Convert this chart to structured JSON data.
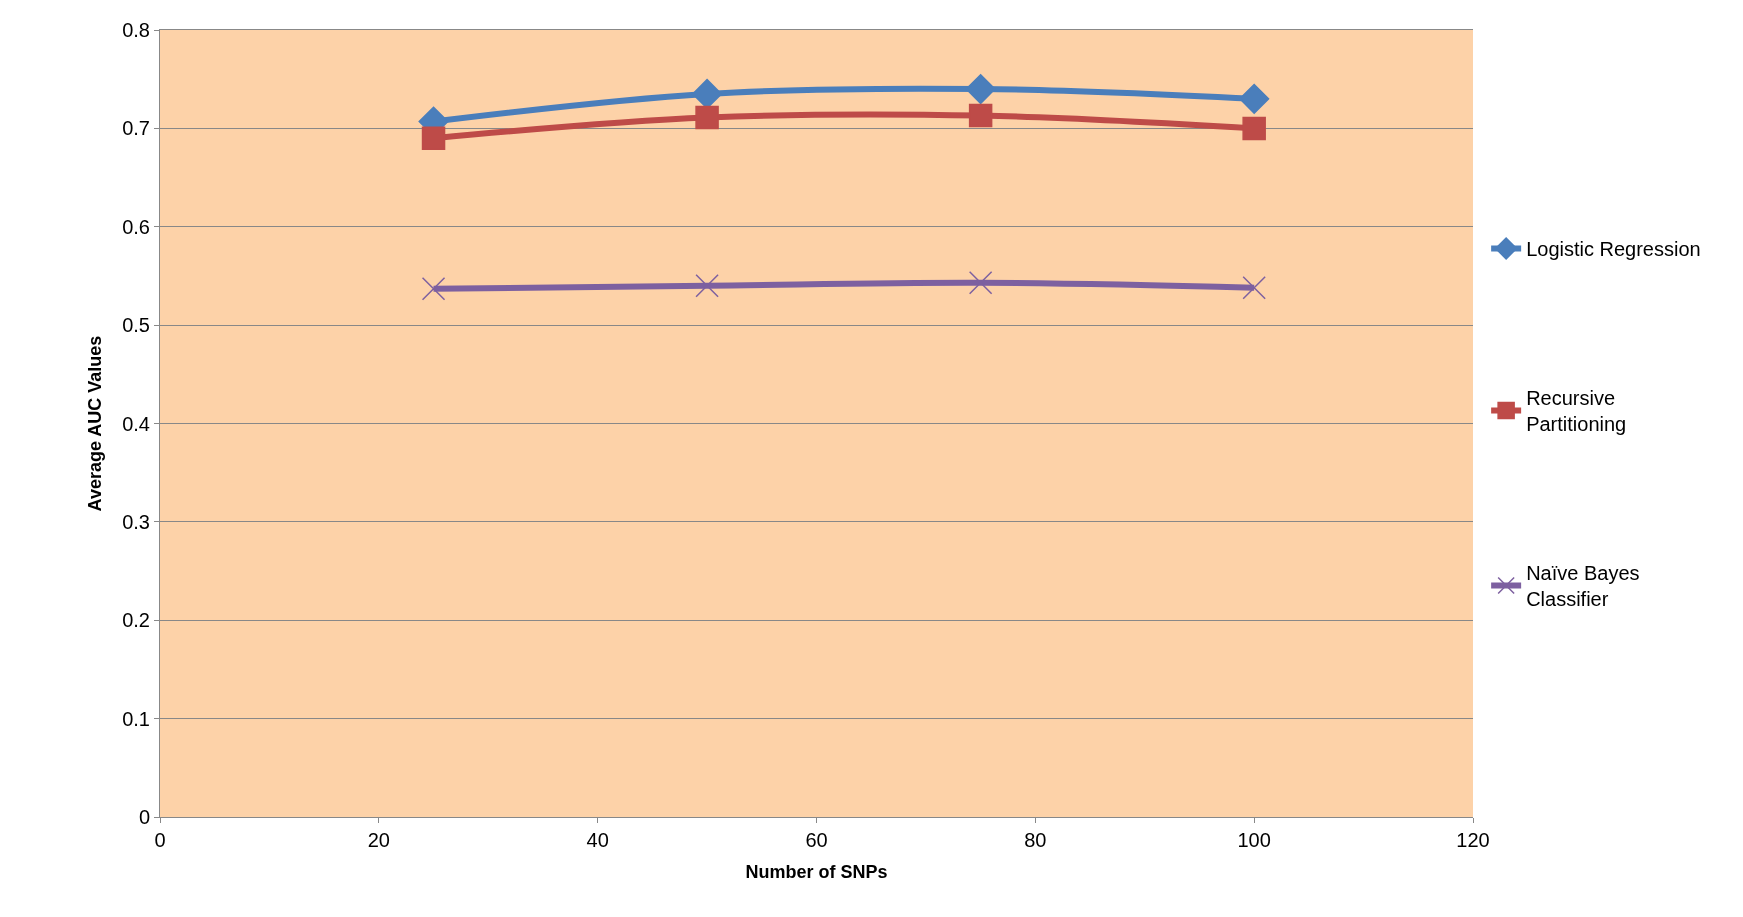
{
  "chart_data": {
    "type": "line",
    "xlabel": "Number of SNPs",
    "ylabel": "Average AUC Values",
    "x": [
      25,
      50,
      75,
      100
    ],
    "series": [
      {
        "name": "Logistic Regression",
        "color": "#4a7ebb",
        "marker": "diamond",
        "values": [
          0.707,
          0.735,
          0.74,
          0.73
        ]
      },
      {
        "name": "Recursive Partitioning",
        "color": "#be4b48",
        "marker": "square",
        "values": [
          0.69,
          0.711,
          0.713,
          0.7
        ]
      },
      {
        "name": "Naïve Bayes Classifier",
        "color": "#7d60a0",
        "marker": "cross",
        "values": [
          0.537,
          0.54,
          0.543,
          0.538
        ]
      }
    ],
    "xlim": [
      0,
      120
    ],
    "xticks": [
      0,
      20,
      40,
      60,
      80,
      100,
      120
    ],
    "ylim": [
      0,
      0.8
    ],
    "yticks": [
      0,
      0.1,
      0.2,
      0.3,
      0.4,
      0.5,
      0.6,
      0.7,
      0.8
    ],
    "grid": "y",
    "legend": "right"
  }
}
